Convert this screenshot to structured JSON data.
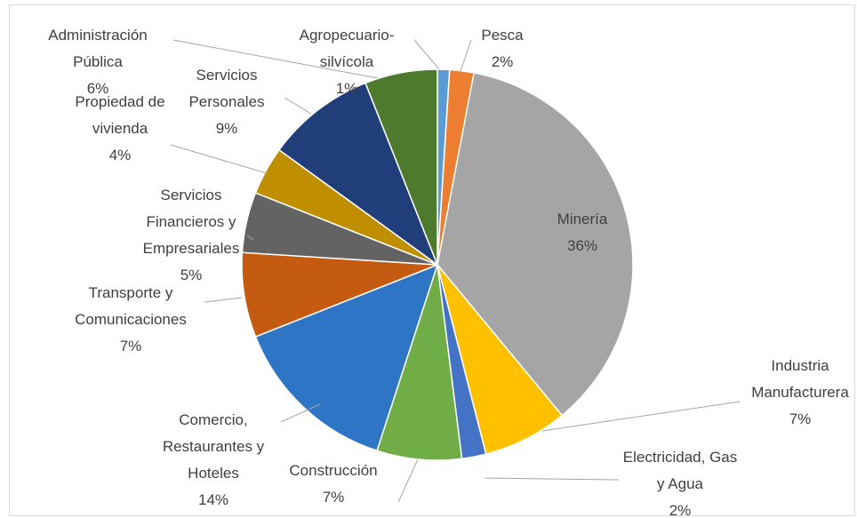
{
  "chart_data": {
    "type": "pie",
    "categories": [
      "Agropecuario-silvícola",
      "Pesca",
      "Minería",
      "Industria Manufacturera",
      "Electricidad, Gas y Agua",
      "Construcción",
      "Comercio, Restaurantes y Hoteles",
      "Transporte y Comunicaciones",
      "Servicios Financieros y Empresariales",
      "Propiedad de vivienda",
      "Servicios Personales",
      "Administración Pública"
    ],
    "values": [
      1,
      2,
      36,
      7,
      2,
      7,
      14,
      7,
      5,
      4,
      9,
      6
    ],
    "value_labels": [
      "1%",
      "2%",
      "36%",
      "7%",
      "2%",
      "7%",
      "14%",
      "7%",
      "5%",
      "4%",
      "9%",
      "6%"
    ],
    "colors": [
      "#5b9bd5",
      "#ed7d31",
      "#a5a5a5",
      "#ffc000",
      "#4472c4",
      "#70ad47",
      "#2e75c6",
      "#c55a11",
      "#636363",
      "#bf8f00",
      "#203f7a",
      "#4e7a2e"
    ]
  }
}
